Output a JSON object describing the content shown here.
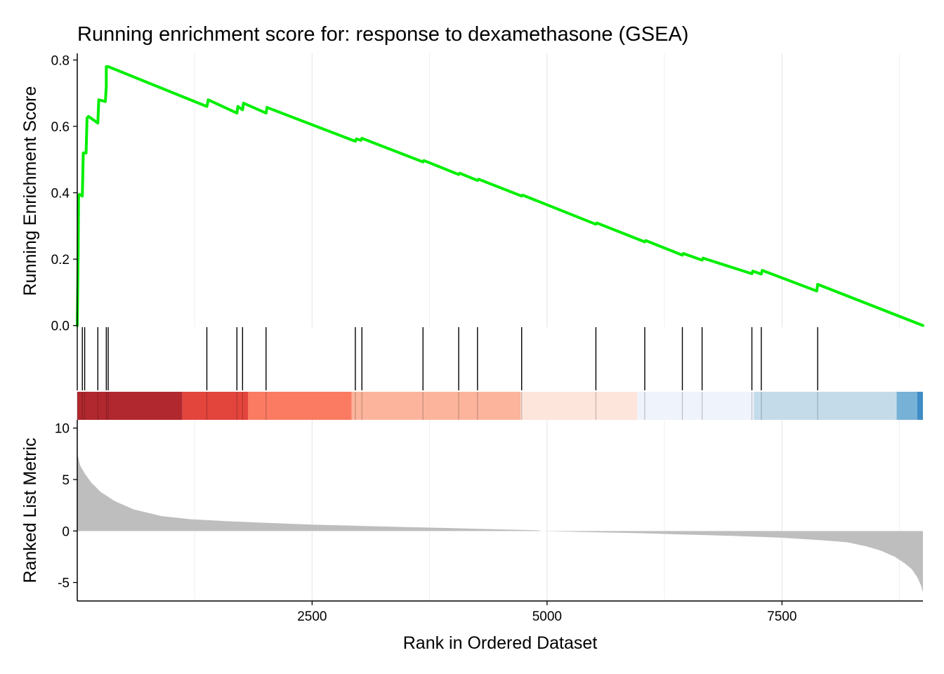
{
  "chart_data": {
    "type": "line",
    "title": "Running enrichment score for: response to dexamethasone (GSEA)",
    "xlabel": "Rank in Ordered Dataset",
    "xlim": [
      1,
      9000
    ],
    "x_ticks": [
      2500,
      5000,
      7500
    ],
    "x_tick_labels": [
      "2500",
      "5000",
      "7500"
    ],
    "grid": "vertical major gridlines",
    "colors": {
      "running_score_line": "#00ee00",
      "hit_marks": "#000000",
      "metric_area": "#bebebe",
      "gridline": "#ebebeb"
    },
    "panels": [
      {
        "name": "running-score",
        "ylabel": "Running Enrichment Score",
        "ylim": [
          -0.005,
          0.82
        ],
        "y_ticks": [
          0.0,
          0.2,
          0.4,
          0.6,
          0.8
        ],
        "y_tick_labels": [
          "0.0",
          "0.2",
          "0.4",
          "0.6",
          "0.8"
        ],
        "series": [
          {
            "x": [
              1,
              10,
              15,
              25,
              55,
              65,
              80,
              95,
              105,
              120,
              220,
              230,
              300,
              310,
              310,
              330,
              1380,
              1395,
              1700,
              1710,
              1760,
              1770,
              2010,
              2020,
              2960,
              2970,
              3020,
              3030,
              3680,
              3690,
              4060,
              4070,
              4260,
              4270,
              4730,
              4740,
              5520,
              5530,
              6040,
              6050,
              6440,
              6450,
              6650,
              6660,
              7180,
              7190,
              7280,
              7290,
              7870,
              7880,
              9000
            ],
            "y": [
              0.0,
              0.21,
              0.39,
              0.395,
              0.39,
              0.52,
              0.52,
              0.52,
              0.625,
              0.63,
              0.61,
              0.68,
              0.675,
              0.72,
              0.78,
              0.78,
              0.66,
              0.68,
              0.64,
              0.66,
              0.65,
              0.67,
              0.64,
              0.657,
              0.555,
              0.562,
              0.558,
              0.564,
              0.493,
              0.497,
              0.455,
              0.459,
              0.437,
              0.441,
              0.39,
              0.393,
              0.305,
              0.309,
              0.252,
              0.256,
              0.212,
              0.217,
              0.197,
              0.203,
              0.156,
              0.164,
              0.155,
              0.166,
              0.104,
              0.124,
              0.0
            ]
          }
        ]
      },
      {
        "name": "gene-hits",
        "hit_positions": [
          1,
          55,
          80,
          220,
          310,
          330,
          1380,
          1700,
          1760,
          2010,
          2960,
          3030,
          3680,
          4060,
          4260,
          4730,
          5520,
          6040,
          6440,
          6650,
          7180,
          7280,
          7880
        ]
      },
      {
        "name": "ranked-list-metric",
        "type": "area",
        "ylabel": "Ranked List Metric",
        "ylim": [
          -6.8,
          10.8
        ],
        "y_ticks": [
          -5,
          0,
          5,
          10
        ],
        "y_tick_labels": [
          "-5",
          "0",
          "5",
          "10"
        ],
        "series": [
          {
            "x": [
              1,
              30,
              80,
              150,
              250,
              400,
              600,
              900,
              1200,
              1600,
              2000,
              2500,
              3000,
              3500,
              4000,
              4500,
              4920,
              4940,
              5500,
              6000,
              6500,
              7000,
              7500,
              8000,
              8200,
              8400,
              8550,
              8700,
              8800,
              8880,
              8940,
              8980,
              9000
            ],
            "y": [
              7.6,
              6.4,
              5.6,
              4.7,
              3.8,
              2.9,
              2.1,
              1.45,
              1.15,
              0.95,
              0.8,
              0.62,
              0.5,
              0.38,
              0.28,
              0.16,
              0.06,
              0.0,
              -0.12,
              -0.22,
              -0.35,
              -0.48,
              -0.65,
              -0.95,
              -1.1,
              -1.5,
              -1.9,
              -2.5,
              -3.1,
              -3.7,
              -4.5,
              -5.3,
              -6.0
            ]
          }
        ]
      }
    ],
    "heatmap_bands": [
      {
        "from": 1,
        "to": 1120,
        "color": "#b2282f"
      },
      {
        "from": 1120,
        "to": 1820,
        "color": "#e3453d"
      },
      {
        "from": 1820,
        "to": 2920,
        "color": "#fb7b62"
      },
      {
        "from": 2920,
        "to": 4720,
        "color": "#fcb49c"
      },
      {
        "from": 4720,
        "to": 5960,
        "color": "#fde5dc"
      },
      {
        "from": 5960,
        "to": 7200,
        "color": "#eff3fc"
      },
      {
        "from": 7200,
        "to": 8720,
        "color": "#c4dcea"
      },
      {
        "from": 8720,
        "to": 8940,
        "color": "#78b1d6"
      },
      {
        "from": 8940,
        "to": 9000,
        "color": "#3f8cc6"
      }
    ]
  }
}
